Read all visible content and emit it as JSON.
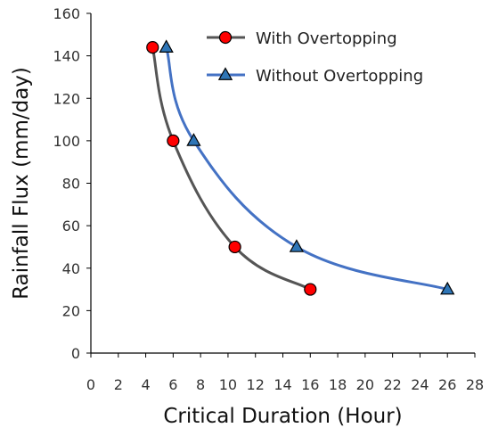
{
  "chart_data": {
    "type": "line",
    "xlabel": "Critical Duration (Hour)",
    "ylabel": "Rainfall Flux (mm/day)",
    "xlim": [
      0,
      28
    ],
    "ylim": [
      0,
      160
    ],
    "xticks": [
      0,
      2,
      4,
      6,
      8,
      10,
      12,
      14,
      16,
      18,
      20,
      22,
      24,
      26,
      28
    ],
    "yticks": [
      0,
      20,
      40,
      60,
      80,
      100,
      120,
      140,
      160
    ],
    "grid": false,
    "legend_position": "top-right",
    "smooth": true,
    "series": [
      {
        "name": "With Overtopping",
        "marker": "circle",
        "line_color": "#555555",
        "marker_color": "#ff0000",
        "x": [
          4.5,
          6.0,
          10.5,
          16.0
        ],
        "y": [
          144,
          100,
          50,
          30
        ]
      },
      {
        "name": "Without Overtopping",
        "marker": "triangle",
        "line_color": "#4472c4",
        "marker_color": "#2e75b6",
        "x": [
          5.5,
          7.5,
          15.0,
          26.0
        ],
        "y": [
          144,
          100,
          50,
          30
        ]
      }
    ]
  }
}
